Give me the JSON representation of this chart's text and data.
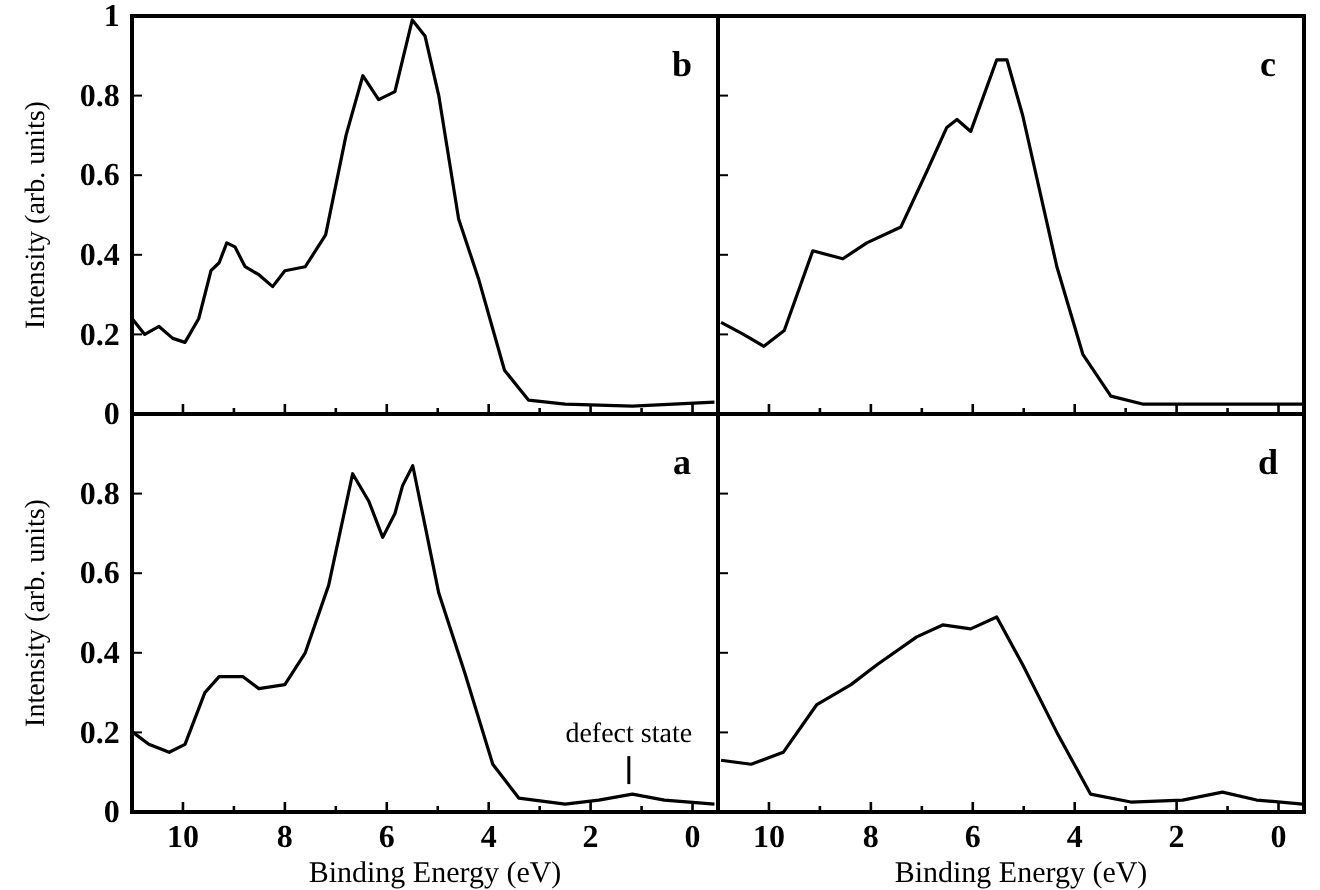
{
  "chart_data": [
    {
      "type": "line",
      "title": "b",
      "ylabel": "Intensity (arb. units)",
      "xlim": [
        11,
        -0.5
      ],
      "ylim": [
        0,
        1
      ],
      "tick_labels": "y",
      "xticks": [
        {
          "value": 11,
          "label": null
        },
        10,
        {
          "value": 9,
          "label": null
        },
        8,
        {
          "value": 7,
          "label": null
        },
        6,
        {
          "value": 5,
          "label": null
        },
        4,
        {
          "value": 3,
          "label": null
        },
        2,
        {
          "value": 1,
          "label": null
        },
        0
      ],
      "yticks": [
        0,
        0.2,
        0.4,
        0.6,
        0.8,
        1
      ],
      "series": [
        {
          "color": "#000000",
          "x": [
            11.0,
            10.75,
            10.47,
            10.2,
            9.96,
            9.69,
            9.45,
            9.29,
            9.14,
            8.98,
            8.78,
            8.51,
            8.24,
            8.0,
            7.6,
            7.2,
            6.8,
            6.47,
            6.16,
            5.84,
            5.69,
            5.5,
            5.25,
            4.98,
            4.59,
            4.2,
            3.69,
            3.22,
            2.5,
            1.18,
            -0.43
          ],
          "values": [
            0.24,
            0.2,
            0.22,
            0.19,
            0.18,
            0.24,
            0.36,
            0.38,
            0.43,
            0.42,
            0.37,
            0.35,
            0.32,
            0.36,
            0.37,
            0.45,
            0.7,
            0.85,
            0.79,
            0.81,
            0.89,
            0.99,
            0.95,
            0.8,
            0.49,
            0.34,
            0.11,
            0.035,
            0.025,
            0.02,
            0.03
          ]
        }
      ]
    },
    {
      "type": "line",
      "title": "c",
      "xlim": [
        11,
        -0.5
      ],
      "ylim": [
        0,
        1
      ],
      "tick_labels": false,
      "xticks": [
        {
          "value": 11,
          "label": null
        },
        10,
        {
          "value": 9,
          "label": null
        },
        8,
        {
          "value": 7,
          "label": null
        },
        6,
        {
          "value": 5,
          "label": null
        },
        4,
        {
          "value": 3,
          "label": null
        },
        2,
        {
          "value": 1,
          "label": null
        },
        0
      ],
      "yticks": [
        0,
        0.2,
        0.4,
        0.6,
        0.8,
        1
      ],
      "series": [
        {
          "color": "#000000",
          "x": [
            10.94,
            10.5,
            10.1,
            9.7,
            9.14,
            8.55,
            8.08,
            7.41,
            6.9,
            6.51,
            6.31,
            6.04,
            5.53,
            5.33,
            5.02,
            4.35,
            3.84,
            3.29,
            2.67,
            1.33,
            -0.47
          ],
          "values": [
            0.23,
            0.2,
            0.17,
            0.21,
            0.41,
            0.39,
            0.43,
            0.47,
            0.61,
            0.72,
            0.74,
            0.71,
            0.89,
            0.89,
            0.75,
            0.37,
            0.15,
            0.045,
            0.025,
            0.025,
            0.025
          ]
        }
      ]
    },
    {
      "type": "line",
      "title": "a",
      "xlabel": "Binding Energy (eV)",
      "ylabel": "Intensity (arb. units)",
      "xlim": [
        11,
        -0.5
      ],
      "ylim": [
        0,
        1
      ],
      "xticks": [
        {
          "value": 11,
          "label": null
        },
        10,
        {
          "value": 9,
          "label": null
        },
        8,
        {
          "value": 7,
          "label": null
        },
        6,
        {
          "value": 5,
          "label": null
        },
        4,
        {
          "value": 3,
          "label": null
        },
        2,
        {
          "value": 1,
          "label": null
        },
        0
      ],
      "yticks": [
        0,
        0.2,
        0.4,
        0.6,
        0.8
      ],
      "annotations": [
        {
          "text": "defect state",
          "x": 1.25,
          "y": 0.05
        }
      ],
      "series": [
        {
          "color": "#000000",
          "x": [
            10.98,
            10.67,
            10.27,
            9.96,
            9.57,
            9.29,
            8.82,
            8.51,
            8.0,
            7.6,
            7.14,
            6.67,
            6.35,
            6.08,
            5.84,
            5.69,
            5.49,
            5.25,
            4.98,
            4.47,
            3.92,
            3.41,
            2.5,
            1.84,
            1.18,
            0.55,
            -0.43
          ],
          "values": [
            0.2,
            0.17,
            0.15,
            0.17,
            0.3,
            0.34,
            0.34,
            0.31,
            0.32,
            0.4,
            0.57,
            0.85,
            0.78,
            0.69,
            0.75,
            0.82,
            0.87,
            0.72,
            0.55,
            0.35,
            0.12,
            0.035,
            0.02,
            0.03,
            0.045,
            0.03,
            0.02
          ]
        }
      ]
    },
    {
      "type": "line",
      "title": "d",
      "xlabel": "Binding Energy (eV)",
      "xlim": [
        11,
        -0.5
      ],
      "ylim": [
        0,
        1
      ],
      "tick_labels": "x",
      "xticks": [
        {
          "value": 11,
          "label": null
        },
        10,
        {
          "value": 9,
          "label": null
        },
        8,
        {
          "value": 7,
          "label": null
        },
        6,
        {
          "value": 5,
          "label": null
        },
        4,
        {
          "value": 3,
          "label": null
        },
        2,
        {
          "value": 1,
          "label": null
        },
        0
      ],
      "yticks": [
        0,
        0.2,
        0.4,
        0.6,
        0.8
      ],
      "series": [
        {
          "color": "#000000",
          "x": [
            10.94,
            10.35,
            9.72,
            9.06,
            8.39,
            7.88,
            7.1,
            6.59,
            6.04,
            5.53,
            5.02,
            4.35,
            3.69,
            2.9,
            1.88,
            1.1,
            0.43,
            -0.47
          ],
          "values": [
            0.13,
            0.12,
            0.15,
            0.27,
            0.32,
            0.37,
            0.44,
            0.47,
            0.46,
            0.49,
            0.37,
            0.2,
            0.045,
            0.025,
            0.03,
            0.05,
            0.03,
            0.02
          ]
        }
      ]
    }
  ]
}
